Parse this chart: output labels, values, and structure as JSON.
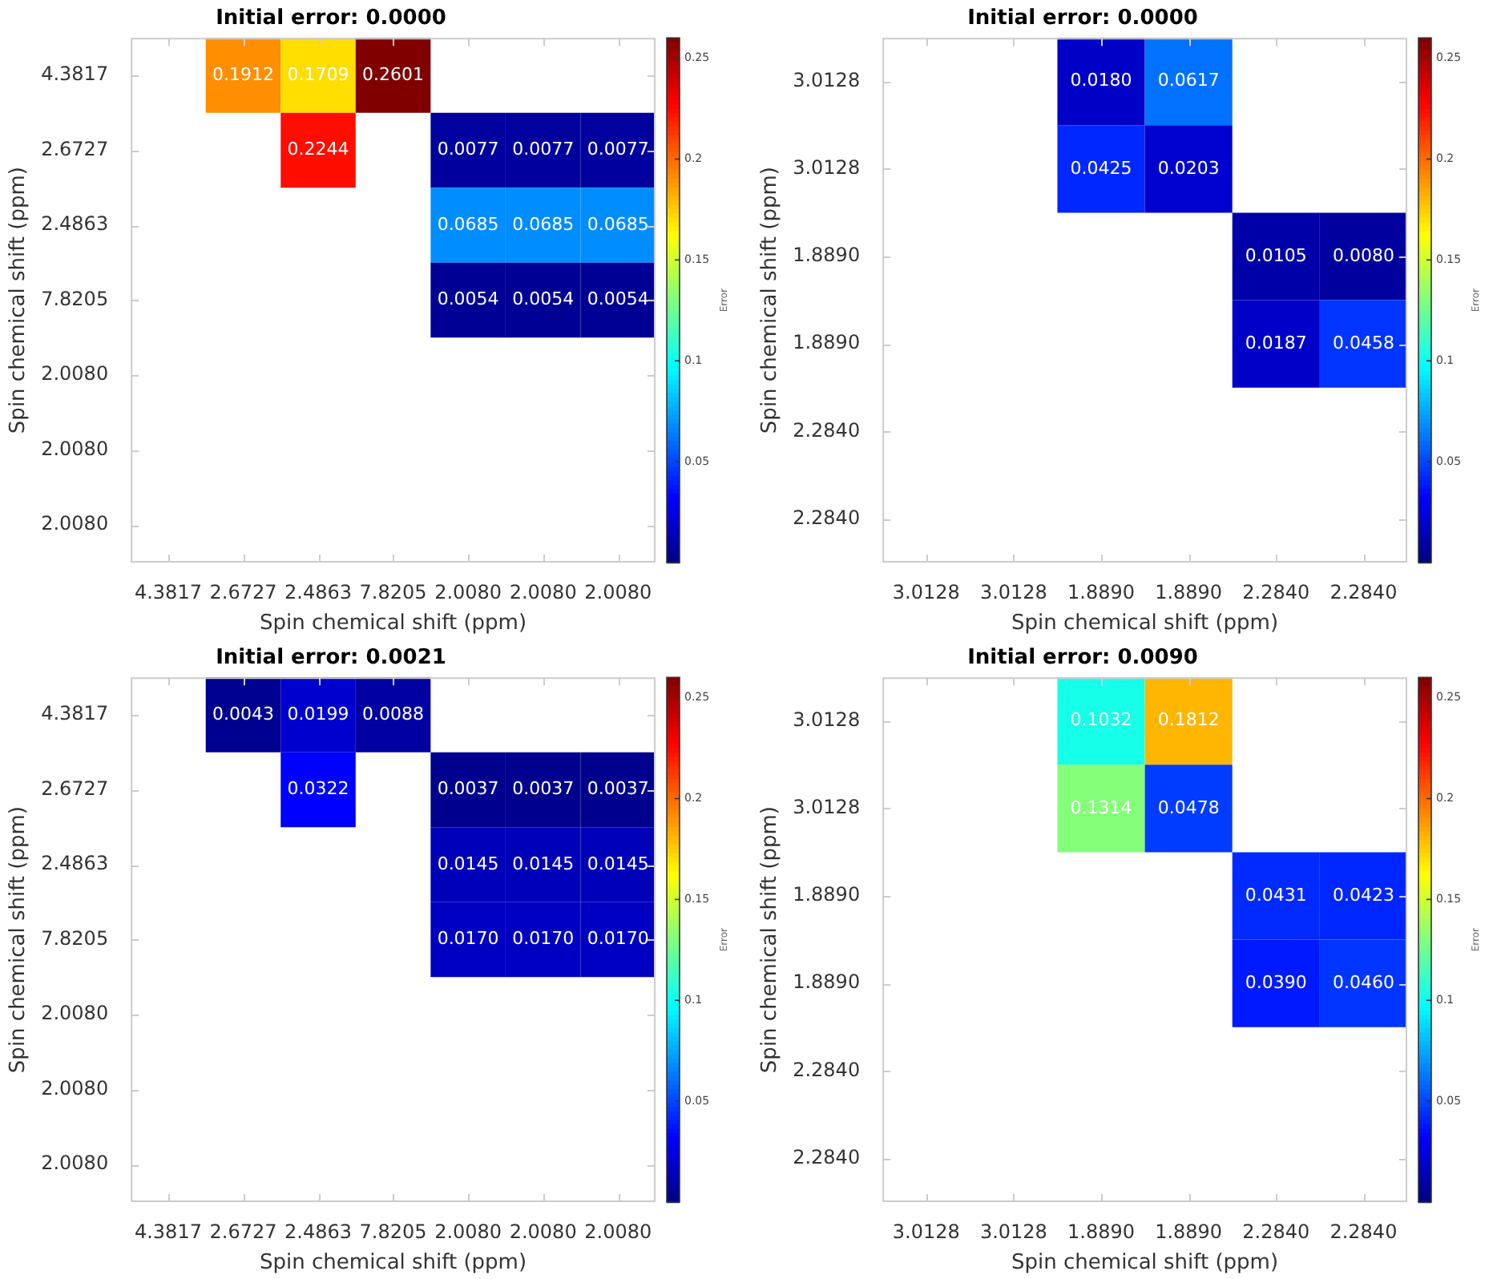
{
  "chart_data": [
    {
      "type": "heatmap",
      "title": "Initial error: 0.0000",
      "xlabel": "Spin chemical shift (ppm)",
      "ylabel": "Spin chemical shift (ppm)",
      "clabel": "Error",
      "categories": [
        "4.3817",
        "2.6727",
        "2.4863",
        "7.8205",
        "2.0080",
        "2.0080",
        "2.0080"
      ],
      "y_categories": [
        "4.3817",
        "2.6727",
        "2.4863",
        "7.8205",
        "2.0080",
        "2.0080",
        "2.0080"
      ],
      "cells": [
        [
          null,
          0.1912,
          0.1709,
          0.2601,
          null,
          null,
          null
        ],
        [
          null,
          null,
          0.2244,
          null,
          0.0077,
          0.0077,
          0.0077
        ],
        [
          null,
          null,
          null,
          null,
          0.0685,
          0.0685,
          0.0685
        ],
        [
          null,
          null,
          null,
          null,
          0.0054,
          0.0054,
          0.0054
        ],
        [
          null,
          null,
          null,
          null,
          null,
          null,
          null
        ],
        [
          null,
          null,
          null,
          null,
          null,
          null,
          null
        ],
        [
          null,
          null,
          null,
          null,
          null,
          null,
          null
        ]
      ],
      "cell_labels": [
        [
          null,
          "0.1912",
          "0.1709",
          "0.2601",
          null,
          null,
          null
        ],
        [
          null,
          null,
          "0.2244",
          null,
          "0.0077",
          "0.0077",
          "0.0077"
        ],
        [
          null,
          null,
          null,
          null,
          "0.0685",
          "0.0685",
          "0.0685"
        ],
        [
          null,
          null,
          null,
          null,
          "0.0054",
          "0.0054",
          "0.0054"
        ],
        [
          null,
          null,
          null,
          null,
          null,
          null,
          null
        ],
        [
          null,
          null,
          null,
          null,
          null,
          null,
          null
        ],
        [
          null,
          null,
          null,
          null,
          null,
          null,
          null
        ]
      ],
      "clim": [
        0,
        0.2601
      ],
      "cticks": [
        0.05,
        0.1,
        0.15,
        0.2,
        0.25
      ]
    },
    {
      "type": "heatmap",
      "title": "Initial error: 0.0000",
      "xlabel": "Spin chemical shift (ppm)",
      "ylabel": "Spin chemical shift (ppm)",
      "clabel": "Error",
      "categories": [
        "3.0128",
        "3.0128",
        "1.8890",
        "1.8890",
        "2.2840",
        "2.2840"
      ],
      "y_categories": [
        "3.0128",
        "3.0128",
        "1.8890",
        "1.8890",
        "2.2840",
        "2.2840"
      ],
      "cells": [
        [
          null,
          null,
          0.018,
          0.0617,
          null,
          null
        ],
        [
          null,
          null,
          0.0425,
          0.0203,
          null,
          null
        ],
        [
          null,
          null,
          null,
          null,
          0.0105,
          0.008
        ],
        [
          null,
          null,
          null,
          null,
          0.0187,
          0.0458
        ],
        [
          null,
          null,
          null,
          null,
          null,
          null
        ],
        [
          null,
          null,
          null,
          null,
          null,
          null
        ]
      ],
      "cell_labels": [
        [
          null,
          null,
          "0.0180",
          "0.0617",
          null,
          null
        ],
        [
          null,
          null,
          "0.0425",
          "0.0203",
          null,
          null
        ],
        [
          null,
          null,
          null,
          null,
          "0.0105",
          "0.0080"
        ],
        [
          null,
          null,
          null,
          null,
          "0.0187",
          "0.0458"
        ],
        [
          null,
          null,
          null,
          null,
          null,
          null
        ],
        [
          null,
          null,
          null,
          null,
          null,
          null
        ]
      ],
      "clim": [
        0,
        0.2601
      ],
      "cticks": [
        0.05,
        0.1,
        0.15,
        0.2,
        0.25
      ]
    },
    {
      "type": "heatmap",
      "title": "Initial error: 0.0021",
      "xlabel": "Spin chemical shift (ppm)",
      "ylabel": "Spin chemical shift (ppm)",
      "clabel": "Error",
      "categories": [
        "4.3817",
        "2.6727",
        "2.4863",
        "7.8205",
        "2.0080",
        "2.0080",
        "2.0080"
      ],
      "y_categories": [
        "4.3817",
        "2.6727",
        "2.4863",
        "7.8205",
        "2.0080",
        "2.0080",
        "2.0080"
      ],
      "cells": [
        [
          null,
          0.0043,
          0.0199,
          0.0088,
          null,
          null,
          null
        ],
        [
          null,
          null,
          0.0322,
          null,
          0.0037,
          0.0037,
          0.0037
        ],
        [
          null,
          null,
          null,
          null,
          0.0145,
          0.0145,
          0.0145
        ],
        [
          null,
          null,
          null,
          null,
          0.017,
          0.017,
          0.017
        ],
        [
          null,
          null,
          null,
          null,
          null,
          null,
          null
        ],
        [
          null,
          null,
          null,
          null,
          null,
          null,
          null
        ],
        [
          null,
          null,
          null,
          null,
          null,
          null,
          null
        ]
      ],
      "cell_labels": [
        [
          null,
          "0.0043",
          "0.0199",
          "0.0088",
          null,
          null,
          null
        ],
        [
          null,
          null,
          "0.0322",
          null,
          "0.0037",
          "0.0037",
          "0.0037"
        ],
        [
          null,
          null,
          null,
          null,
          "0.0145",
          "0.0145",
          "0.0145"
        ],
        [
          null,
          null,
          null,
          null,
          "0.0170",
          "0.0170",
          "0.0170"
        ],
        [
          null,
          null,
          null,
          null,
          null,
          null,
          null
        ],
        [
          null,
          null,
          null,
          null,
          null,
          null,
          null
        ],
        [
          null,
          null,
          null,
          null,
          null,
          null,
          null
        ]
      ],
      "clim": [
        0,
        0.2601
      ],
      "cticks": [
        0.05,
        0.1,
        0.15,
        0.2,
        0.25
      ]
    },
    {
      "type": "heatmap",
      "title": "Initial error: 0.0090",
      "xlabel": "Spin chemical shift (ppm)",
      "ylabel": "Spin chemical shift (ppm)",
      "clabel": "Error",
      "categories": [
        "3.0128",
        "3.0128",
        "1.8890",
        "1.8890",
        "2.2840",
        "2.2840"
      ],
      "y_categories": [
        "3.0128",
        "3.0128",
        "1.8890",
        "1.8890",
        "2.2840",
        "2.2840"
      ],
      "cells": [
        [
          null,
          null,
          0.1032,
          0.1812,
          null,
          null
        ],
        [
          null,
          null,
          0.1314,
          0.0478,
          null,
          null
        ],
        [
          null,
          null,
          null,
          null,
          0.0431,
          0.0423
        ],
        [
          null,
          null,
          null,
          null,
          0.039,
          0.046
        ],
        [
          null,
          null,
          null,
          null,
          null,
          null
        ],
        [
          null,
          null,
          null,
          null,
          null,
          null
        ]
      ],
      "cell_labels": [
        [
          null,
          null,
          "0.1032",
          "0.1812",
          null,
          null
        ],
        [
          null,
          null,
          "0.1314",
          "0.0478",
          null,
          null
        ],
        [
          null,
          null,
          null,
          null,
          "0.0431",
          "0.0423"
        ],
        [
          null,
          null,
          null,
          null,
          "0.0390",
          "0.0460"
        ],
        [
          null,
          null,
          null,
          null,
          null,
          null
        ],
        [
          null,
          null,
          null,
          null,
          null,
          null
        ]
      ],
      "clim": [
        0,
        0.2601
      ],
      "cticks": [
        0.05,
        0.1,
        0.15,
        0.2,
        0.25
      ]
    }
  ]
}
